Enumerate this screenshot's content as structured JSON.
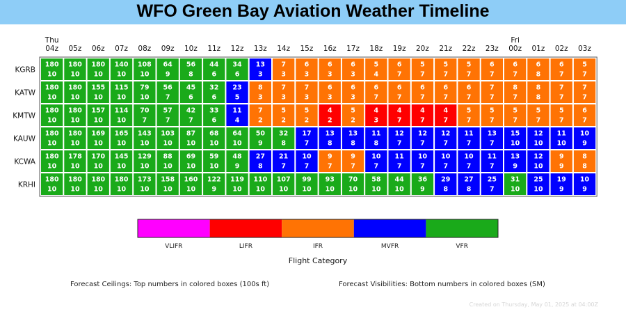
{
  "page": {
    "title": "WFO Green Bay Aviation Weather Timeline",
    "footer_ceilings": "Forecast Ceilings:  Top numbers in colored boxes (100s ft)",
    "footer_visibilities": "Forecast Visibilities:  Bottom numbers in colored boxes (SM)",
    "footer_created": "Created on Thursday, May 01, 2025 at 04:00Z"
  },
  "colors": {
    "title_bar": "#8ecdf7",
    "VLIFR": "#ff00ff",
    "LIFR": "#ff0000",
    "IFR": "#ff7304",
    "MVFR": "#0000ff",
    "VFR": "#1aaa1a"
  },
  "chart_data": {
    "type": "heatmap",
    "hours": [
      "04z",
      "05z",
      "06z",
      "07z",
      "08z",
      "09z",
      "10z",
      "11z",
      "12z",
      "13z",
      "14z",
      "15z",
      "16z",
      "17z",
      "18z",
      "19z",
      "20z",
      "21z",
      "22z",
      "23z",
      "00z",
      "01z",
      "02z",
      "03z"
    ],
    "day_labels": [
      {
        "hour_index": 0,
        "label": "Thu"
      },
      {
        "hour_index": 20,
        "label": "Fri"
      }
    ],
    "stations": [
      {
        "name": "KGRB",
        "ceilings": [
          180,
          180,
          180,
          140,
          108,
          64,
          56,
          44,
          34,
          13,
          7,
          6,
          6,
          6,
          5,
          6,
          5,
          5,
          5,
          6,
          6,
          6,
          6,
          5
        ],
        "visibilities": [
          10,
          10,
          10,
          10,
          10,
          9,
          8,
          6,
          6,
          3,
          3,
          3,
          3,
          3,
          4,
          7,
          7,
          7,
          7,
          7,
          7,
          8,
          7,
          7
        ],
        "categories": [
          "VFR",
          "VFR",
          "VFR",
          "VFR",
          "VFR",
          "VFR",
          "VFR",
          "VFR",
          "VFR",
          "MVFR",
          "IFR",
          "IFR",
          "IFR",
          "IFR",
          "IFR",
          "IFR",
          "IFR",
          "IFR",
          "IFR",
          "IFR",
          "IFR",
          "IFR",
          "IFR",
          "IFR"
        ]
      },
      {
        "name": "KATW",
        "ceilings": [
          180,
          180,
          155,
          115,
          79,
          56,
          45,
          32,
          23,
          8,
          7,
          7,
          6,
          6,
          6,
          6,
          6,
          6,
          6,
          7,
          8,
          8,
          7,
          7
        ],
        "visibilities": [
          10,
          10,
          10,
          10,
          10,
          7,
          6,
          6,
          5,
          3,
          3,
          3,
          3,
          3,
          7,
          7,
          7,
          7,
          7,
          7,
          7,
          8,
          7,
          7
        ],
        "categories": [
          "VFR",
          "VFR",
          "VFR",
          "VFR",
          "VFR",
          "VFR",
          "VFR",
          "VFR",
          "MVFR",
          "IFR",
          "IFR",
          "IFR",
          "IFR",
          "IFR",
          "IFR",
          "IFR",
          "IFR",
          "IFR",
          "IFR",
          "IFR",
          "IFR",
          "IFR",
          "IFR",
          "IFR"
        ]
      },
      {
        "name": "KMTW",
        "ceilings": [
          180,
          180,
          157,
          114,
          70,
          57,
          42,
          33,
          11,
          7,
          5,
          5,
          4,
          5,
          4,
          4,
          4,
          4,
          5,
          5,
          5,
          5,
          5,
          6
        ],
        "visibilities": [
          10,
          10,
          10,
          10,
          7,
          7,
          7,
          6,
          4,
          2,
          2,
          2,
          2,
          2,
          3,
          7,
          7,
          7,
          7,
          7,
          7,
          7,
          7,
          7
        ],
        "categories": [
          "VFR",
          "VFR",
          "VFR",
          "VFR",
          "VFR",
          "VFR",
          "VFR",
          "VFR",
          "MVFR",
          "IFR",
          "IFR",
          "IFR",
          "LIFR",
          "IFR",
          "LIFR",
          "LIFR",
          "LIFR",
          "LIFR",
          "IFR",
          "IFR",
          "IFR",
          "IFR",
          "IFR",
          "IFR"
        ]
      },
      {
        "name": "KAUW",
        "ceilings": [
          180,
          180,
          169,
          165,
          143,
          103,
          87,
          68,
          64,
          50,
          32,
          17,
          13,
          13,
          11,
          12,
          12,
          12,
          11,
          13,
          15,
          12,
          11,
          10
        ],
        "visibilities": [
          10,
          10,
          10,
          10,
          10,
          10,
          10,
          10,
          10,
          9,
          8,
          7,
          8,
          8,
          8,
          7,
          7,
          7,
          7,
          7,
          10,
          10,
          10,
          9
        ],
        "categories": [
          "VFR",
          "VFR",
          "VFR",
          "VFR",
          "VFR",
          "VFR",
          "VFR",
          "VFR",
          "VFR",
          "VFR",
          "VFR",
          "MVFR",
          "MVFR",
          "MVFR",
          "MVFR",
          "MVFR",
          "MVFR",
          "MVFR",
          "MVFR",
          "MVFR",
          "MVFR",
          "MVFR",
          "MVFR",
          "MVFR"
        ]
      },
      {
        "name": "KCWA",
        "ceilings": [
          180,
          178,
          170,
          145,
          129,
          88,
          69,
          59,
          48,
          27,
          21,
          10,
          9,
          9,
          10,
          11,
          10,
          10,
          10,
          11,
          13,
          12,
          9,
          8
        ],
        "visibilities": [
          10,
          10,
          10,
          10,
          10,
          10,
          10,
          10,
          9,
          8,
          7,
          7,
          7,
          7,
          7,
          7,
          7,
          7,
          7,
          7,
          9,
          10,
          9,
          8
        ],
        "categories": [
          "VFR",
          "VFR",
          "VFR",
          "VFR",
          "VFR",
          "VFR",
          "VFR",
          "VFR",
          "VFR",
          "MVFR",
          "MVFR",
          "MVFR",
          "IFR",
          "IFR",
          "MVFR",
          "MVFR",
          "MVFR",
          "MVFR",
          "MVFR",
          "MVFR",
          "MVFR",
          "MVFR",
          "IFR",
          "IFR"
        ]
      },
      {
        "name": "KRHI",
        "ceilings": [
          180,
          180,
          180,
          180,
          173,
          158,
          160,
          122,
          119,
          110,
          107,
          99,
          93,
          70,
          58,
          44,
          36,
          29,
          27,
          25,
          31,
          25,
          19,
          10
        ],
        "visibilities": [
          10,
          10,
          10,
          10,
          10,
          10,
          10,
          9,
          10,
          10,
          10,
          10,
          10,
          10,
          10,
          10,
          9,
          8,
          8,
          7,
          10,
          10,
          9,
          9
        ],
        "categories": [
          "VFR",
          "VFR",
          "VFR",
          "VFR",
          "VFR",
          "VFR",
          "VFR",
          "VFR",
          "VFR",
          "VFR",
          "VFR",
          "VFR",
          "VFR",
          "VFR",
          "VFR",
          "VFR",
          "VFR",
          "MVFR",
          "MVFR",
          "MVFR",
          "VFR",
          "MVFR",
          "MVFR",
          "MVFR"
        ]
      }
    ],
    "legend": {
      "title": "Flight Category",
      "items": [
        "VLIFR",
        "LIFR",
        "IFR",
        "MVFR",
        "VFR"
      ]
    }
  }
}
